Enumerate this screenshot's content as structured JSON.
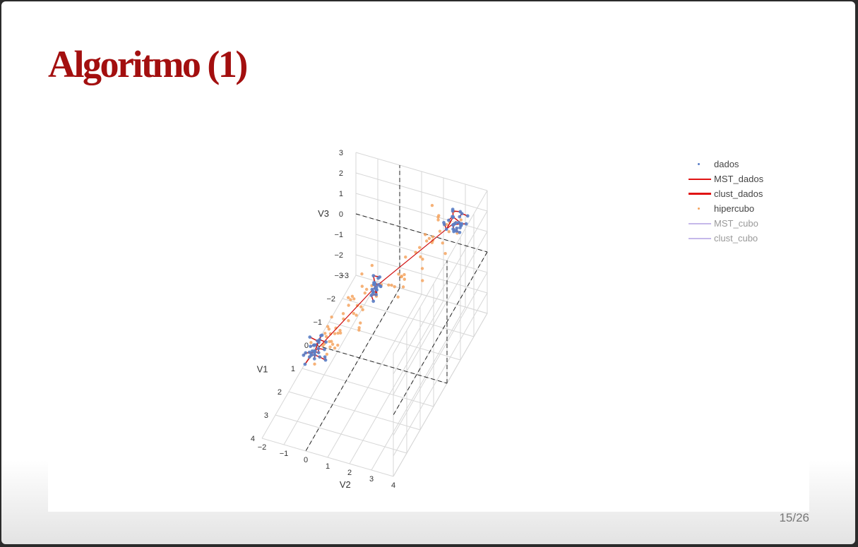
{
  "slide": {
    "title": "Algoritmo (1)",
    "page": "15/26"
  },
  "legend": [
    {
      "label": "dados",
      "symbol": "dot",
      "color": "#5b7fc7",
      "dim": false
    },
    {
      "label": "MST_dados",
      "symbol": "line",
      "color": "#e01414",
      "dim": false
    },
    {
      "label": "clust_dados",
      "symbol": "thick",
      "color": "#e01414",
      "dim": false
    },
    {
      "label": "hipercubo",
      "symbol": "dot",
      "color": "#f4a460",
      "dim": false
    },
    {
      "label": "MST_cubo",
      "symbol": "line",
      "color": "#c5b8ea",
      "dim": true
    },
    {
      "label": "clust_cubo",
      "symbol": "line",
      "color": "#c5b8ea",
      "dim": true
    }
  ],
  "chart_data": {
    "type": "scatter3d",
    "xlabel": "V1",
    "ylabel": "V2",
    "zlabel": "V3",
    "xlim": [
      -3,
      4
    ],
    "ylim": [
      -2,
      4
    ],
    "zlim": [
      -3,
      3
    ],
    "x_ticks": [
      "−3",
      "−2",
      "−1",
      "0",
      "1",
      "2",
      "3",
      "4"
    ],
    "y_ticks": [
      "−2",
      "−1",
      "0",
      "1",
      "2",
      "3",
      "4"
    ],
    "z_ticks": [
      "−3",
      "−2",
      "−1",
      "0",
      "1",
      "2",
      "3"
    ],
    "clusters": [
      {
        "center": [
          0.8,
          -1.5,
          -2.2
        ],
        "spread": 0.35,
        "n": 30
      },
      {
        "center": [
          -0.5,
          0.4,
          0.0
        ],
        "spread": 0.25,
        "n": 22
      },
      {
        "center": [
          -2.0,
          3.2,
          2.4
        ],
        "spread": 0.35,
        "n": 30
      }
    ],
    "hipercubo_points": 85,
    "colors": {
      "dados": "#5b7fc7",
      "mst": "#d01010",
      "hipercubo": "#f4a460",
      "grid": "#d7d7d7"
    }
  }
}
